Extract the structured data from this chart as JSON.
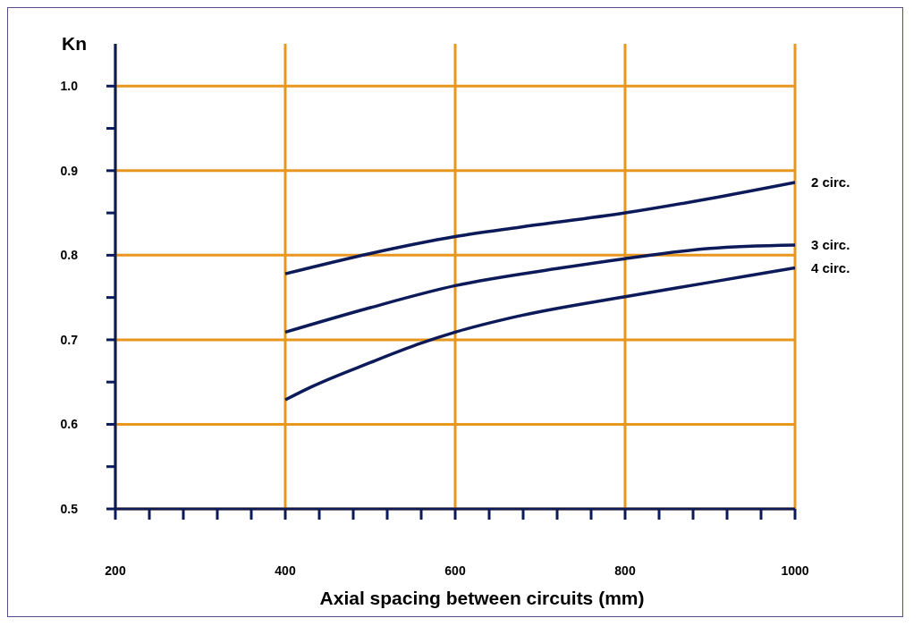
{
  "chart_data": {
    "type": "line",
    "ylabel": "Kn",
    "xlabel": "Axial spacing between circuits (mm)",
    "xlim": [
      200,
      1000
    ],
    "ylim": [
      0.5,
      1.05
    ],
    "xticks": [
      200,
      {
        "value": 240,
        "label": null
      },
      {
        "value": 280,
        "label": null
      },
      {
        "value": 320,
        "label": null
      },
      {
        "value": 360,
        "label": null
      },
      400,
      {
        "value": 440,
        "label": null
      },
      {
        "value": 480,
        "label": null
      },
      {
        "value": 520,
        "label": null
      },
      {
        "value": 560,
        "label": null
      },
      600,
      {
        "value": 640,
        "label": null
      },
      {
        "value": 680,
        "label": null
      },
      {
        "value": 720,
        "label": null
      },
      {
        "value": 760,
        "label": null
      },
      800,
      {
        "value": 840,
        "label": null
      },
      {
        "value": 880,
        "label": null
      },
      {
        "value": 920,
        "label": null
      },
      {
        "value": 960,
        "label": null
      },
      1000
    ],
    "yticks": [
      {
        "value": 0.5,
        "label": "0.5"
      },
      {
        "value": 0.55,
        "label": null
      },
      {
        "value": 0.6,
        "label": "0.6"
      },
      {
        "value": 0.65,
        "label": null
      },
      {
        "value": 0.7,
        "label": "0.7"
      },
      {
        "value": 0.75,
        "label": null
      },
      {
        "value": 0.8,
        "label": "0.8"
      },
      {
        "value": 0.85,
        "label": null
      },
      {
        "value": 0.9,
        "label": "0.9"
      },
      {
        "value": 0.95,
        "label": null
      },
      {
        "value": 1.0,
        "label": "1.0"
      }
    ],
    "grid": true,
    "marker": "none",
    "line_style": "solid",
    "legend": false,
    "series": [
      {
        "name": "2 circ.",
        "color": "#0c1a5a",
        "x": [
          400,
          500,
          600,
          675,
          800,
          900,
          1000
        ],
        "values": [
          0.778,
          0.802,
          0.822,
          0.833,
          0.85,
          0.867,
          0.886
        ]
      },
      {
        "name": "3 circ.",
        "color": "#0c1a5a",
        "x": [
          400,
          500,
          600,
          725,
          800,
          900,
          1000
        ],
        "values": [
          0.709,
          0.738,
          0.764,
          0.785,
          0.796,
          0.808,
          0.812
        ]
      },
      {
        "name": "4 circ.",
        "color": "#0c1a5a",
        "x": [
          400,
          430,
          500,
          560,
          600,
          670,
          800,
          900,
          1000
        ],
        "values": [
          0.629,
          0.644,
          0.673,
          0.696,
          0.709,
          0.727,
          0.751,
          0.768,
          0.785
        ]
      }
    ]
  }
}
